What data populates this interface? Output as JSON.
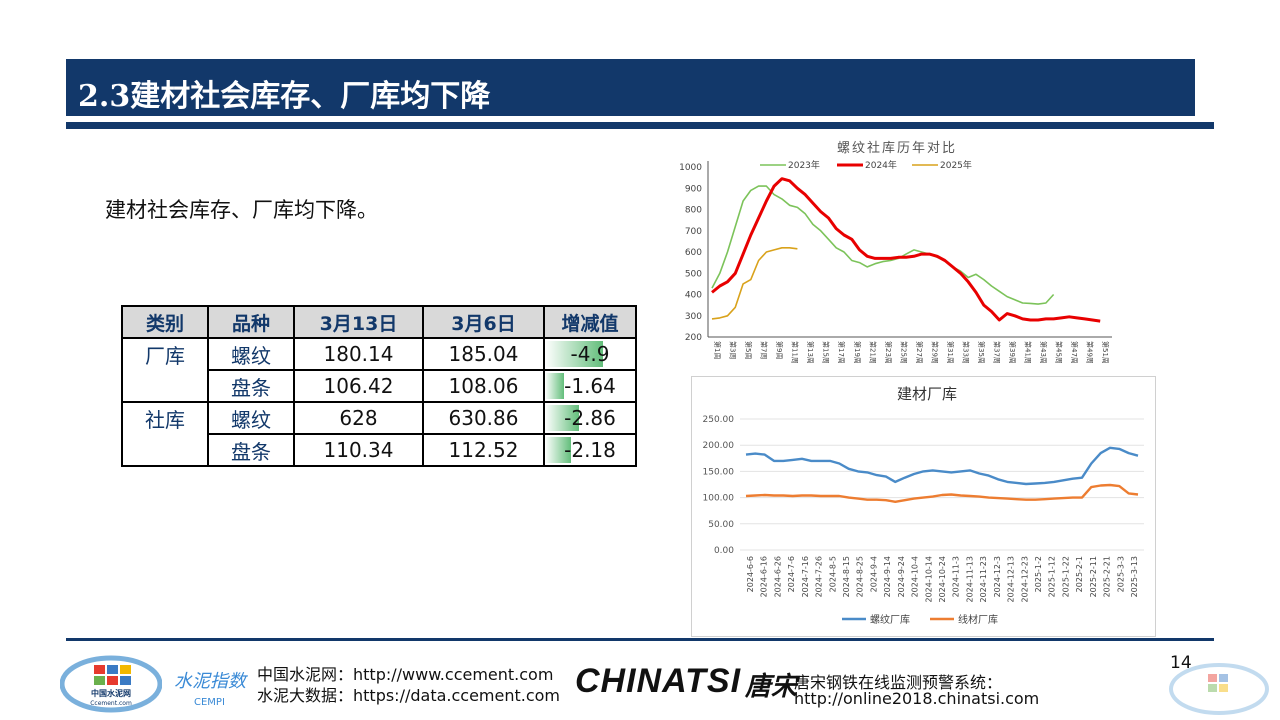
{
  "slide": {
    "title": "2.3建材社会库存、厂库均下降",
    "subtitle": "建材社会库存、厂库均下降。",
    "page_number": "14"
  },
  "table": {
    "headers": [
      "类别",
      "品种",
      "3月13日",
      "3月6日",
      "增减值"
    ],
    "rows": [
      {
        "category": "厂库",
        "variety": "螺纹",
        "mar13": "180.14",
        "mar6": "185.04",
        "change": "-4.9",
        "change_num": -4.9
      },
      {
        "category": "",
        "variety": "盘条",
        "mar13": "106.42",
        "mar6": "108.06",
        "change": "-1.64",
        "change_num": -1.64
      },
      {
        "category": "社库",
        "variety": "螺纹",
        "mar13": "628",
        "mar6": "630.86",
        "change": "-2.86",
        "change_num": -2.86
      },
      {
        "category": "",
        "variety": "盘条",
        "mar13": "110.34",
        "mar6": "112.52",
        "change": "-2.18",
        "change_num": -2.18
      }
    ]
  },
  "chart_data": [
    {
      "type": "line",
      "title": "螺纹社库历年对比",
      "ylim": [
        200,
        1000
      ],
      "yticks": [
        "200",
        "300",
        "400",
        "500",
        "600",
        "700",
        "800",
        "900",
        "1000"
      ],
      "xticks": [
        "第1周",
        "第3周",
        "第5周",
        "第7周",
        "第9周",
        "第11周",
        "第13周",
        "第15周",
        "第17周",
        "第19周",
        "第21周",
        "第23周",
        "第25周",
        "第27周",
        "第29周",
        "第31周",
        "第33周",
        "第35周",
        "第37周",
        "第39周",
        "第41周",
        "第43周",
        "第45周",
        "第47周",
        "第49周",
        "第51周"
      ],
      "legend_position": "top",
      "series": [
        {
          "name": "2023年",
          "color": "#7cc35a",
          "values": [
            430,
            500,
            600,
            720,
            840,
            890,
            910,
            910,
            870,
            850,
            820,
            810,
            780,
            730,
            700,
            660,
            620,
            600,
            560,
            550,
            530,
            545,
            555,
            560,
            570,
            590,
            610,
            600,
            590,
            575,
            560,
            530,
            510,
            480,
            495,
            470,
            440,
            415,
            390,
            375,
            360,
            358,
            355,
            360,
            400
          ]
        },
        {
          "name": "2024年",
          "color": "#e80000",
          "values": [
            410,
            440,
            460,
            500,
            590,
            680,
            760,
            840,
            910,
            945,
            935,
            900,
            870,
            830,
            790,
            760,
            710,
            680,
            660,
            610,
            580,
            570,
            570,
            570,
            575,
            575,
            580,
            590,
            590,
            580,
            560,
            530,
            500,
            460,
            410,
            350,
            320,
            280,
            310,
            300,
            285,
            280,
            280,
            285,
            285,
            290,
            295,
            290,
            285,
            280,
            275
          ]
        },
        {
          "name": "2025年",
          "color": "#d9a21b",
          "values": [
            285,
            290,
            300,
            340,
            450,
            470,
            560,
            600,
            610,
            620,
            620,
            615
          ]
        }
      ]
    },
    {
      "type": "line",
      "title": "建材厂库",
      "ylim": [
        0,
        250
      ],
      "yticks": [
        "0.00",
        "50.00",
        "100.00",
        "150.00",
        "200.00",
        "250.00"
      ],
      "xticks": [
        "2024-6-6",
        "2024-6-16",
        "2024-6-26",
        "2024-7-6",
        "2024-7-16",
        "2024-7-26",
        "2024-8-5",
        "2024-8-15",
        "2024-8-25",
        "2024-9-4",
        "2024-9-14",
        "2024-9-24",
        "2024-10-4",
        "2024-10-14",
        "2024-10-24",
        "2024-11-3",
        "2024-11-13",
        "2024-11-23",
        "2024-12-3",
        "2024-12-13",
        "2024-12-23",
        "2025-1-2",
        "2025-1-12",
        "2025-1-22",
        "2025-2-1",
        "2025-2-11",
        "2025-2-21",
        "2025-3-3",
        "2025-3-13"
      ],
      "legend_position": "bottom",
      "series": [
        {
          "name": "螺纹厂库",
          "color": "#4a8bc8",
          "values": [
            182,
            184,
            182,
            170,
            170,
            172,
            174,
            170,
            170,
            170,
            165,
            155,
            150,
            148,
            143,
            140,
            130,
            138,
            145,
            150,
            152,
            150,
            148,
            150,
            152,
            146,
            142,
            135,
            130,
            128,
            126,
            127,
            128,
            130,
            133,
            136,
            138,
            165,
            185,
            195,
            193,
            185,
            180
          ]
        },
        {
          "name": "线材厂库",
          "color": "#ed7d31",
          "values": [
            103,
            104,
            105,
            104,
            104,
            103,
            104,
            104,
            103,
            103,
            103,
            100,
            98,
            96,
            96,
            95,
            92,
            95,
            98,
            100,
            102,
            105,
            106,
            104,
            103,
            102,
            100,
            99,
            98,
            97,
            96,
            96,
            97,
            98,
            99,
            100,
            100,
            120,
            123,
            124,
            122,
            108,
            106
          ]
        }
      ]
    }
  ],
  "footer": {
    "line1": "中国水泥网：http://www.ccement.com",
    "line2": "水泥大数据：https://data.ccement.com",
    "chinatsi": "CHINATSI",
    "chinatsi_cn": "唐宋",
    "monitor1": "唐宋钢铁在线监测预警系统：",
    "monitor2": "http://online2018.chinatsi.com",
    "logo_text1": "中国水泥网",
    "logo_text2": "Ccement.com",
    "cempi_text": "水泥指数",
    "cempi_en": "CEMPI"
  },
  "colors": {
    "brand": "#12386a",
    "bar_green": "#63be7b"
  }
}
